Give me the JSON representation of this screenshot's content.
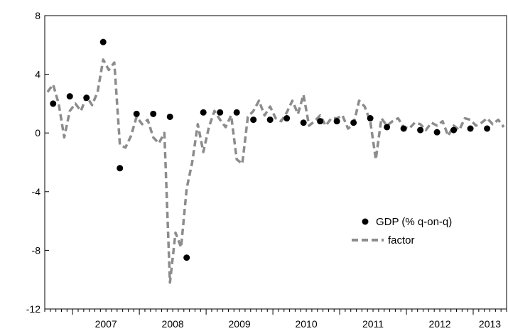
{
  "chart_data": {
    "type": "scatter",
    "y_ticks": [
      "8",
      "4",
      "0",
      "-4",
      "-8",
      "-12"
    ],
    "y_tick_values": [
      8,
      4,
      0,
      -4,
      -8,
      -12
    ],
    "ylim": [
      -12,
      8
    ],
    "x_tick_labels": [
      "2007",
      "2008",
      "2009",
      "2010",
      "2011",
      "2012",
      "2013"
    ],
    "x_range_months": [
      "2006-08",
      "2013-06"
    ],
    "grid": false,
    "legend_position": "lower-right",
    "series": [
      {
        "name": "GDP (% q-on-q)",
        "kind": "markers",
        "color": "#000000",
        "x": [
          "2006-09",
          "2006-12",
          "2007-03",
          "2007-06",
          "2007-09",
          "2007-12",
          "2008-03",
          "2008-06",
          "2008-09",
          "2008-12",
          "2009-03",
          "2009-06",
          "2009-09",
          "2009-12",
          "2010-03",
          "2010-06",
          "2010-09",
          "2010-12",
          "2011-03",
          "2011-06",
          "2011-09",
          "2011-12",
          "2012-03",
          "2012-06",
          "2012-09",
          "2012-12",
          "2013-03"
        ],
        "values": [
          2.0,
          2.5,
          2.4,
          6.2,
          -2.4,
          1.3,
          1.3,
          1.1,
          -8.5,
          1.4,
          1.4,
          1.4,
          0.9,
          0.9,
          1.0,
          0.7,
          0.8,
          0.8,
          0.7,
          1.0,
          0.4,
          0.3,
          0.2,
          0.05,
          0.2,
          0.3,
          0.3
        ]
      },
      {
        "name": "factor",
        "kind": "dashed-line",
        "color": "#8c8c8c",
        "x": [
          "2006-08",
          "2006-09",
          "2006-10",
          "2006-11",
          "2006-12",
          "2007-01",
          "2007-02",
          "2007-03",
          "2007-04",
          "2007-05",
          "2007-06",
          "2007-07",
          "2007-08",
          "2007-09",
          "2007-10",
          "2007-11",
          "2007-12",
          "2008-01",
          "2008-02",
          "2008-03",
          "2008-04",
          "2008-05",
          "2008-06",
          "2008-07",
          "2008-08",
          "2008-09",
          "2008-10",
          "2008-11",
          "2008-12",
          "2009-01",
          "2009-02",
          "2009-03",
          "2009-04",
          "2009-05",
          "2009-06",
          "2009-07",
          "2009-08",
          "2009-09",
          "2009-10",
          "2009-11",
          "2009-12",
          "2010-01",
          "2010-02",
          "2010-03",
          "2010-04",
          "2010-05",
          "2010-06",
          "2010-07",
          "2010-08",
          "2010-09",
          "2010-10",
          "2010-11",
          "2010-12",
          "2011-01",
          "2011-02",
          "2011-03",
          "2011-04",
          "2011-05",
          "2011-06",
          "2011-07",
          "2011-08",
          "2011-09",
          "2011-10",
          "2011-11",
          "2011-12",
          "2012-01",
          "2012-02",
          "2012-03",
          "2012-04",
          "2012-05",
          "2012-06",
          "2012-07",
          "2012-08",
          "2012-09",
          "2012-10",
          "2012-11",
          "2012-12",
          "2013-01",
          "2013-02",
          "2013-03",
          "2013-04",
          "2013-05",
          "2013-06"
        ],
        "values": [
          2.8,
          3.3,
          2.0,
          -0.3,
          1.5,
          2.0,
          1.5,
          2.5,
          1.9,
          2.8,
          5.0,
          4.3,
          4.8,
          -0.8,
          -1.0,
          -0.2,
          1.1,
          0.6,
          0.9,
          -0.3,
          -0.7,
          0.0,
          -10.2,
          -6.8,
          -7.8,
          -3.8,
          -2.0,
          0.6,
          -1.3,
          0.4,
          1.5,
          0.9,
          0.4,
          1.2,
          -1.8,
          -2.1,
          1.1,
          1.5,
          2.2,
          1.2,
          1.8,
          1.0,
          0.8,
          1.4,
          2.2,
          1.3,
          2.6,
          0.5,
          0.8,
          1.2,
          0.5,
          1.0,
          1.0,
          1.2,
          0.3,
          0.6,
          2.2,
          1.8,
          0.8,
          -1.8,
          1.0,
          0.5,
          0.8,
          1.0,
          0.4,
          0.3,
          0.7,
          0.6,
          0.2,
          0.7,
          0.5,
          0.8,
          -0.2,
          0.5,
          0.2,
          1.0,
          0.9,
          0.5,
          0.7,
          1.0,
          0.6,
          0.9,
          0.4
        ]
      }
    ]
  }
}
